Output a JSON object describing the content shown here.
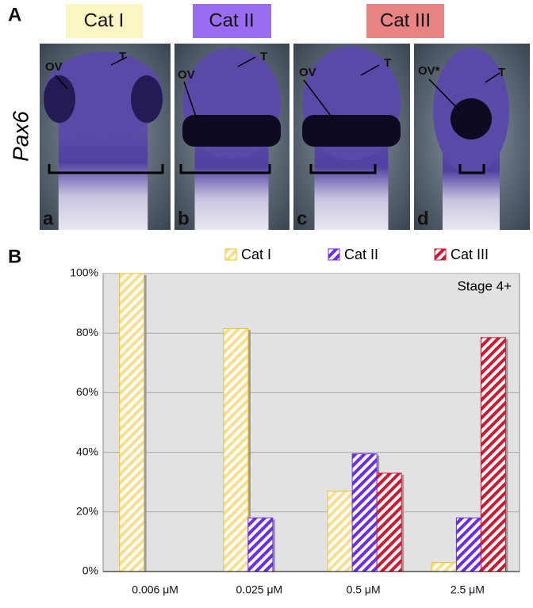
{
  "figure": {
    "panel_a": {
      "label": "A",
      "categories": [
        "Cat I",
        "Cat II",
        "Cat III"
      ],
      "gene": "Pax6",
      "photos": [
        {
          "letter": "a",
          "labels": [
            "OV",
            "T"
          ]
        },
        {
          "letter": "b",
          "labels": [
            "OV",
            "T"
          ]
        },
        {
          "letter": "c",
          "labels": [
            "OV",
            "T"
          ]
        },
        {
          "letter": "d",
          "labels": [
            "OV*",
            "T"
          ]
        }
      ]
    },
    "panel_b": {
      "label": "B"
    }
  },
  "chart_data": {
    "type": "bar",
    "annotation": "Stage 4+",
    "categories": [
      "0.006 μM",
      "0.025 μM",
      "0.5 μM",
      "2.5 μM"
    ],
    "series": [
      {
        "name": "Cat I",
        "color": "#f0c020",
        "values": [
          100,
          81.5,
          27,
          3
        ]
      },
      {
        "name": "Cat II",
        "color": "#6a2cf0",
        "values": [
          0,
          18,
          39.5,
          18
        ]
      },
      {
        "name": "Cat III",
        "color": "#d01830",
        "values": [
          0,
          0,
          33,
          78.5
        ]
      }
    ],
    "ylim": [
      0,
      100
    ],
    "yticks": [
      {
        "value": 0,
        "label": "0%"
      },
      {
        "value": 20,
        "label": "20%"
      },
      {
        "value": 40,
        "label": "40%"
      },
      {
        "value": 60,
        "label": "60%"
      },
      {
        "value": 80,
        "label": "80%"
      },
      {
        "value": 100,
        "label": "100%"
      }
    ],
    "grid": true
  }
}
